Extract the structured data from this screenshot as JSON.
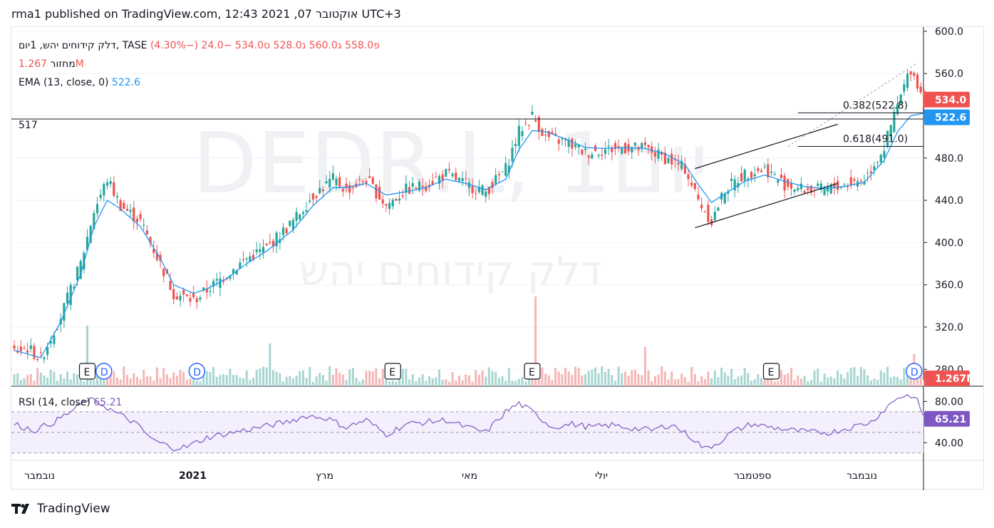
{
  "header": {
    "published": "rma1 published on TradingView.com, 12:43 2021 ,07 אוקטובר UTC+3"
  },
  "legend": {
    "symbol": "דלק קידוחים יהש, 1יום, TASE",
    "ohlc_text": "פ558.0  ג560.0  נ528.0  ס534.0  −24.0 (−4.30%)",
    "volume_label": "מחזור",
    "volume_value": "1.267M",
    "ema_label": "EMA (13, close, 0)",
    "ema_value": "522.6",
    "rsi_label": "RSI (14, close)",
    "rsi_value": "65.21",
    "level_label": "517"
  },
  "watermark": {
    "ticker": "DEDR.L, 1יום",
    "name": "דלק קידוחים יהש"
  },
  "colors": {
    "up": "#26a69a",
    "down": "#ef5350",
    "ema": "#2196f3",
    "rsi": "#7e57c2",
    "grid": "#f0f3fa"
  },
  "footer": {
    "brand": "TradingView"
  },
  "chart_data": {
    "type": "candlestick",
    "title": "דלק קידוחים יהש, 1יום, TASE",
    "price_axis": {
      "ticks": [
        "600.0",
        "560.0",
        "520.0",
        "480.0",
        "440.0",
        "400.0",
        "360.0",
        "320.0",
        "280.0"
      ],
      "ylim": [
        264,
        604
      ]
    },
    "x_axis": {
      "ticks": [
        "נובמבר",
        "2021",
        "מרץ",
        "מאי",
        "יולי",
        "ספטמבר",
        "נובמבר"
      ]
    },
    "last": {
      "open": 558.0,
      "high": 560.0,
      "low": 528.0,
      "close": 534.0,
      "change": -24.0,
      "change_pct": -4.3
    },
    "price_series": [
      [
        0,
        297
      ],
      [
        4,
        300
      ],
      [
        8,
        290
      ],
      [
        14,
        330
      ],
      [
        20,
        380
      ],
      [
        24,
        430
      ],
      [
        28,
        460
      ],
      [
        32,
        435
      ],
      [
        38,
        420
      ],
      [
        44,
        380
      ],
      [
        48,
        352
      ],
      [
        54,
        345
      ],
      [
        58,
        355
      ],
      [
        64,
        370
      ],
      [
        70,
        385
      ],
      [
        76,
        395
      ],
      [
        84,
        420
      ],
      [
        90,
        445
      ],
      [
        96,
        460
      ],
      [
        100,
        450
      ],
      [
        106,
        460
      ],
      [
        112,
        435
      ],
      [
        118,
        450
      ],
      [
        124,
        455
      ],
      [
        130,
        465
      ],
      [
        136,
        455
      ],
      [
        142,
        448
      ],
      [
        148,
        470
      ],
      [
        152,
        505
      ],
      [
        156,
        520
      ],
      [
        160,
        500
      ],
      [
        166,
        495
      ],
      [
        172,
        485
      ],
      [
        178,
        488
      ],
      [
        184,
        490
      ],
      [
        190,
        489
      ],
      [
        196,
        480
      ],
      [
        202,
        470
      ],
      [
        206,
        440
      ],
      [
        210,
        420
      ],
      [
        214,
        450
      ],
      [
        220,
        465
      ],
      [
        226,
        470
      ],
      [
        232,
        455
      ],
      [
        238,
        450
      ],
      [
        244,
        450
      ],
      [
        250,
        455
      ],
      [
        256,
        460
      ],
      [
        262,
        490
      ],
      [
        266,
        530
      ],
      [
        270,
        565
      ],
      [
        272,
        550
      ],
      [
        274,
        534
      ]
    ],
    "ema_series": [
      [
        0,
        298
      ],
      [
        8,
        291
      ],
      [
        14,
        325
      ],
      [
        20,
        370
      ],
      [
        24,
        415
      ],
      [
        28,
        440
      ],
      [
        32,
        432
      ],
      [
        38,
        415
      ],
      [
        44,
        385
      ],
      [
        48,
        360
      ],
      [
        54,
        352
      ],
      [
        58,
        356
      ],
      [
        64,
        366
      ],
      [
        70,
        380
      ],
      [
        76,
        392
      ],
      [
        84,
        412
      ],
      [
        90,
        435
      ],
      [
        96,
        452
      ],
      [
        100,
        452
      ],
      [
        106,
        456
      ],
      [
        112,
        445
      ],
      [
        118,
        448
      ],
      [
        124,
        452
      ],
      [
        130,
        460
      ],
      [
        136,
        456
      ],
      [
        142,
        450
      ],
      [
        148,
        460
      ],
      [
        152,
        488
      ],
      [
        156,
        506
      ],
      [
        160,
        505
      ],
      [
        166,
        498
      ],
      [
        172,
        490
      ],
      [
        178,
        489
      ],
      [
        184,
        490
      ],
      [
        190,
        489
      ],
      [
        196,
        484
      ],
      [
        202,
        474
      ],
      [
        206,
        455
      ],
      [
        210,
        438
      ],
      [
        214,
        446
      ],
      [
        220,
        458
      ],
      [
        226,
        464
      ],
      [
        232,
        458
      ],
      [
        238,
        453
      ],
      [
        244,
        451
      ],
      [
        250,
        453
      ],
      [
        256,
        457
      ],
      [
        262,
        478
      ],
      [
        266,
        505
      ],
      [
        270,
        520
      ],
      [
        274,
        522.6
      ]
    ],
    "volume": {
      "last": "1.267M",
      "ema_label_value": "1.267M"
    },
    "rsi": {
      "levels": [
        70,
        50,
        30
      ],
      "ticks": [
        "80.00",
        "40.00"
      ],
      "last": 65.21,
      "series": [
        [
          0,
          58
        ],
        [
          6,
          52
        ],
        [
          12,
          60
        ],
        [
          18,
          72
        ],
        [
          22,
          82
        ],
        [
          26,
          78
        ],
        [
          30,
          70
        ],
        [
          36,
          60
        ],
        [
          42,
          42
        ],
        [
          48,
          35
        ],
        [
          52,
          36
        ],
        [
          58,
          45
        ],
        [
          66,
          50
        ],
        [
          74,
          55
        ],
        [
          82,
          60
        ],
        [
          88,
          66
        ],
        [
          94,
          64
        ],
        [
          100,
          55
        ],
        [
          106,
          62
        ],
        [
          112,
          48
        ],
        [
          118,
          58
        ],
        [
          124,
          60
        ],
        [
          130,
          62
        ],
        [
          136,
          55
        ],
        [
          142,
          50
        ],
        [
          148,
          70
        ],
        [
          152,
          78
        ],
        [
          156,
          70
        ],
        [
          162,
          55
        ],
        [
          168,
          58
        ],
        [
          174,
          55
        ],
        [
          180,
          57
        ],
        [
          186,
          54
        ],
        [
          192,
          52
        ],
        [
          198,
          58
        ],
        [
          204,
          45
        ],
        [
          208,
          34
        ],
        [
          212,
          40
        ],
        [
          216,
          50
        ],
        [
          222,
          58
        ],
        [
          228,
          55
        ],
        [
          234,
          52
        ],
        [
          240,
          50
        ],
        [
          246,
          50
        ],
        [
          252,
          55
        ],
        [
          258,
          60
        ],
        [
          262,
          72
        ],
        [
          266,
          84
        ],
        [
          270,
          86
        ],
        [
          272,
          80
        ],
        [
          274,
          65.21
        ]
      ]
    },
    "events": [
      {
        "type": "E",
        "x_index": 22
      },
      {
        "type": "D",
        "x_index": 27
      },
      {
        "type": "D",
        "x_index": 55
      },
      {
        "type": "E",
        "x_index": 114
      },
      {
        "type": "E",
        "x_index": 156
      },
      {
        "type": "E",
        "x_index": 228
      },
      {
        "type": "D",
        "x_index": 271
      }
    ],
    "fib_levels": [
      {
        "label": "0.382(522.8)",
        "value": 522.8
      },
      {
        "label": "0.618(491.0)",
        "value": 491.0
      }
    ],
    "horizontal_level": 517,
    "price_labels": {
      "last_price": "534.0",
      "ema": "522.6",
      "volume": "1.267M",
      "rsi": "65.21"
    }
  }
}
